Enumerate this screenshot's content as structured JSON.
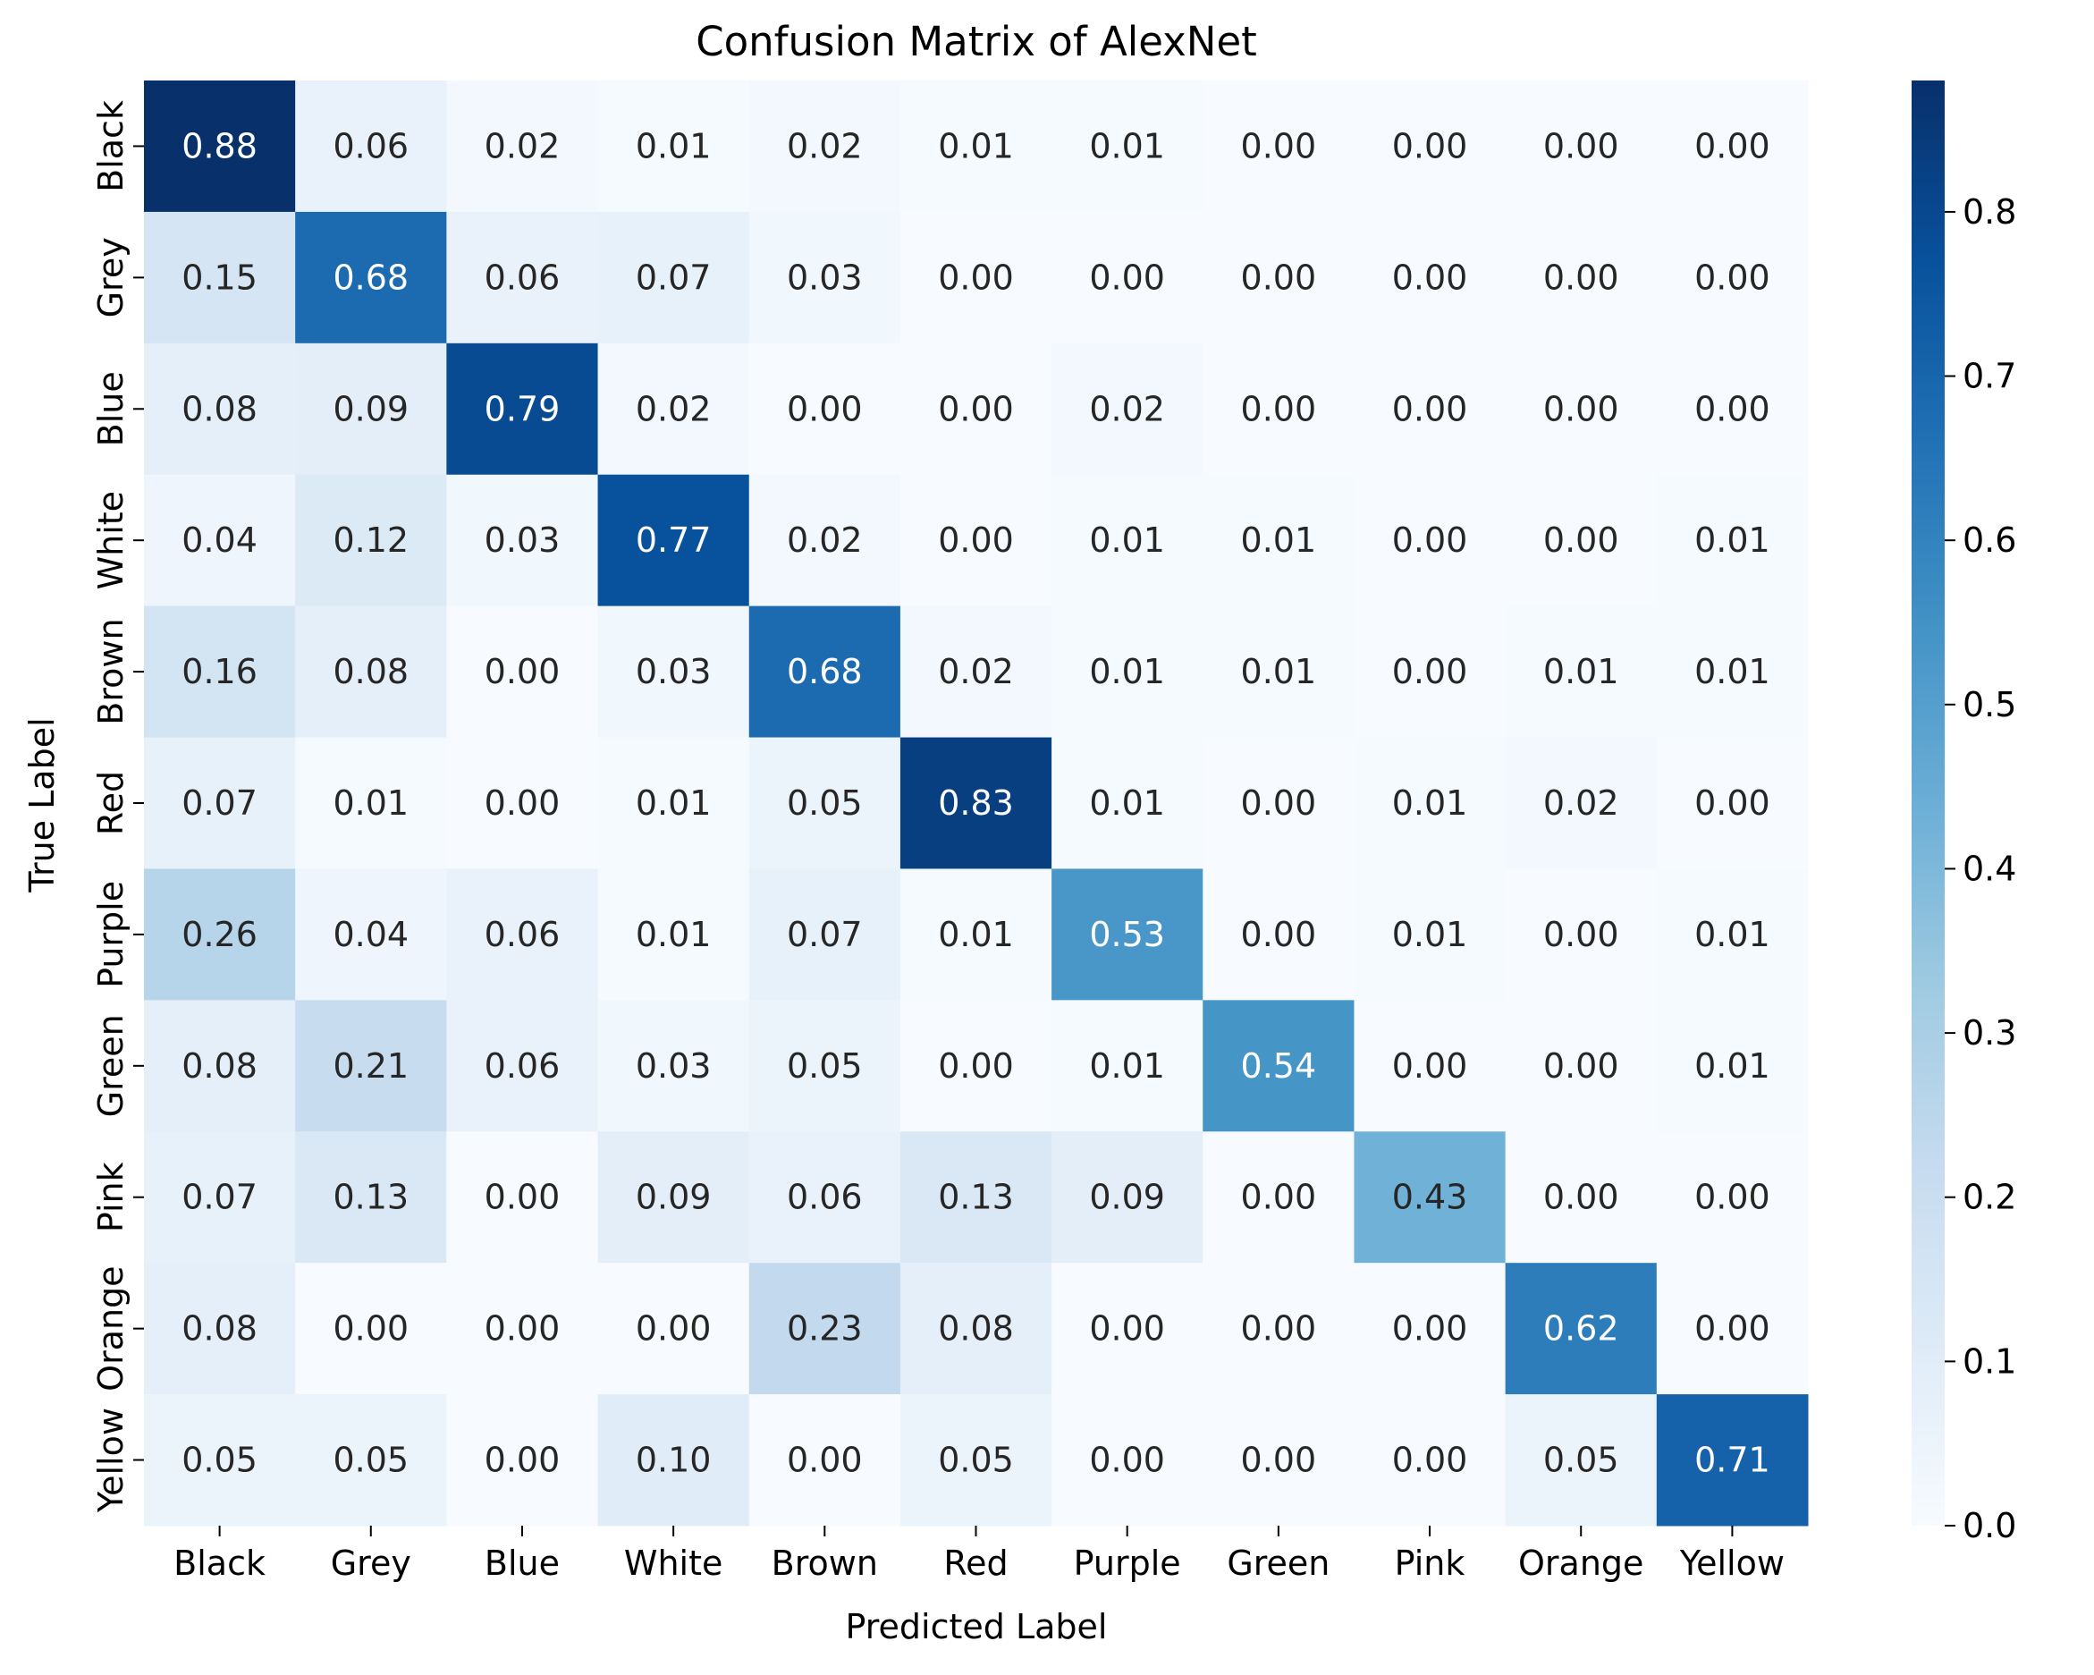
{
  "chart_data": {
    "type": "heatmap",
    "title": "Confusion Matrix of AlexNet",
    "xlabel": "Predicted Label",
    "ylabel": "True Label",
    "x_categories": [
      "Black",
      "Grey",
      "Blue",
      "White",
      "Brown",
      "Red",
      "Purple",
      "Green",
      "Pink",
      "Orange",
      "Yellow"
    ],
    "y_categories": [
      "Black",
      "Grey",
      "Blue",
      "White",
      "Brown",
      "Red",
      "Purple",
      "Green",
      "Pink",
      "Orange",
      "Yellow"
    ],
    "values": [
      [
        0.88,
        0.06,
        0.02,
        0.01,
        0.02,
        0.01,
        0.01,
        0.0,
        0.0,
        0.0,
        0.0
      ],
      [
        0.15,
        0.68,
        0.06,
        0.07,
        0.03,
        0.0,
        0.0,
        0.0,
        0.0,
        0.0,
        0.0
      ],
      [
        0.08,
        0.09,
        0.79,
        0.02,
        0.0,
        0.0,
        0.02,
        0.0,
        0.0,
        0.0,
        0.0
      ],
      [
        0.04,
        0.12,
        0.03,
        0.77,
        0.02,
        0.0,
        0.01,
        0.01,
        0.0,
        0.0,
        0.01
      ],
      [
        0.16,
        0.08,
        0.0,
        0.03,
        0.68,
        0.02,
        0.01,
        0.01,
        0.0,
        0.01,
        0.01
      ],
      [
        0.07,
        0.01,
        0.0,
        0.01,
        0.05,
        0.83,
        0.01,
        0.0,
        0.01,
        0.02,
        0.0
      ],
      [
        0.26,
        0.04,
        0.06,
        0.01,
        0.07,
        0.01,
        0.53,
        0.0,
        0.01,
        0.0,
        0.01
      ],
      [
        0.08,
        0.21,
        0.06,
        0.03,
        0.05,
        0.0,
        0.01,
        0.54,
        0.0,
        0.0,
        0.01
      ],
      [
        0.07,
        0.13,
        0.0,
        0.09,
        0.06,
        0.13,
        0.09,
        0.0,
        0.43,
        0.0,
        0.0
      ],
      [
        0.08,
        0.0,
        0.0,
        0.0,
        0.23,
        0.08,
        0.0,
        0.0,
        0.0,
        0.62,
        0.0
      ],
      [
        0.05,
        0.05,
        0.0,
        0.1,
        0.0,
        0.05,
        0.0,
        0.0,
        0.0,
        0.05,
        0.71
      ]
    ],
    "value_format": "0.00",
    "colormap": "Blues",
    "vmin": 0.0,
    "vmax": 0.88,
    "colorbar_ticks": [
      "0.0",
      "0.1",
      "0.2",
      "0.3",
      "0.4",
      "0.5",
      "0.6",
      "0.7",
      "0.8"
    ],
    "colorbar_tick_values": [
      0.0,
      0.1,
      0.2,
      0.3,
      0.4,
      0.5,
      0.6,
      0.7,
      0.8
    ],
    "annotation_colors": {
      "dark_text": "#262626",
      "light_text": "#ffffff"
    },
    "colormap_stops": [
      "#f7fbff",
      "#deebf7",
      "#c6dbef",
      "#9ecae1",
      "#6baed6",
      "#4292c6",
      "#2171b5",
      "#08519c",
      "#08306b"
    ]
  }
}
